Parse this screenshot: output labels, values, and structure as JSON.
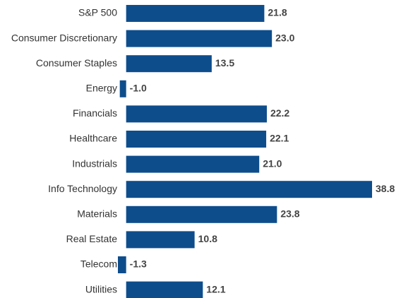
{
  "chart_data": {
    "type": "bar",
    "orientation": "horizontal",
    "categories": [
      "S&P 500",
      "Consumer Discretionary",
      "Consumer Staples",
      "Energy",
      "Financials",
      "Healthcare",
      "Industrials",
      "Info Technology",
      "Materials",
      "Real Estate",
      "Telecom",
      "Utilities"
    ],
    "values": [
      21.8,
      23.0,
      13.5,
      -1.0,
      22.2,
      22.1,
      21.0,
      38.8,
      23.8,
      10.8,
      -1.3,
      12.1
    ],
    "value_labels": [
      "21.8",
      "23.0",
      "13.5",
      "-1.0",
      "22.2",
      "22.1",
      "21.0",
      "38.8",
      "23.8",
      "10.8",
      "-1.3",
      "12.1"
    ],
    "color": "#0e4d8c"
  }
}
